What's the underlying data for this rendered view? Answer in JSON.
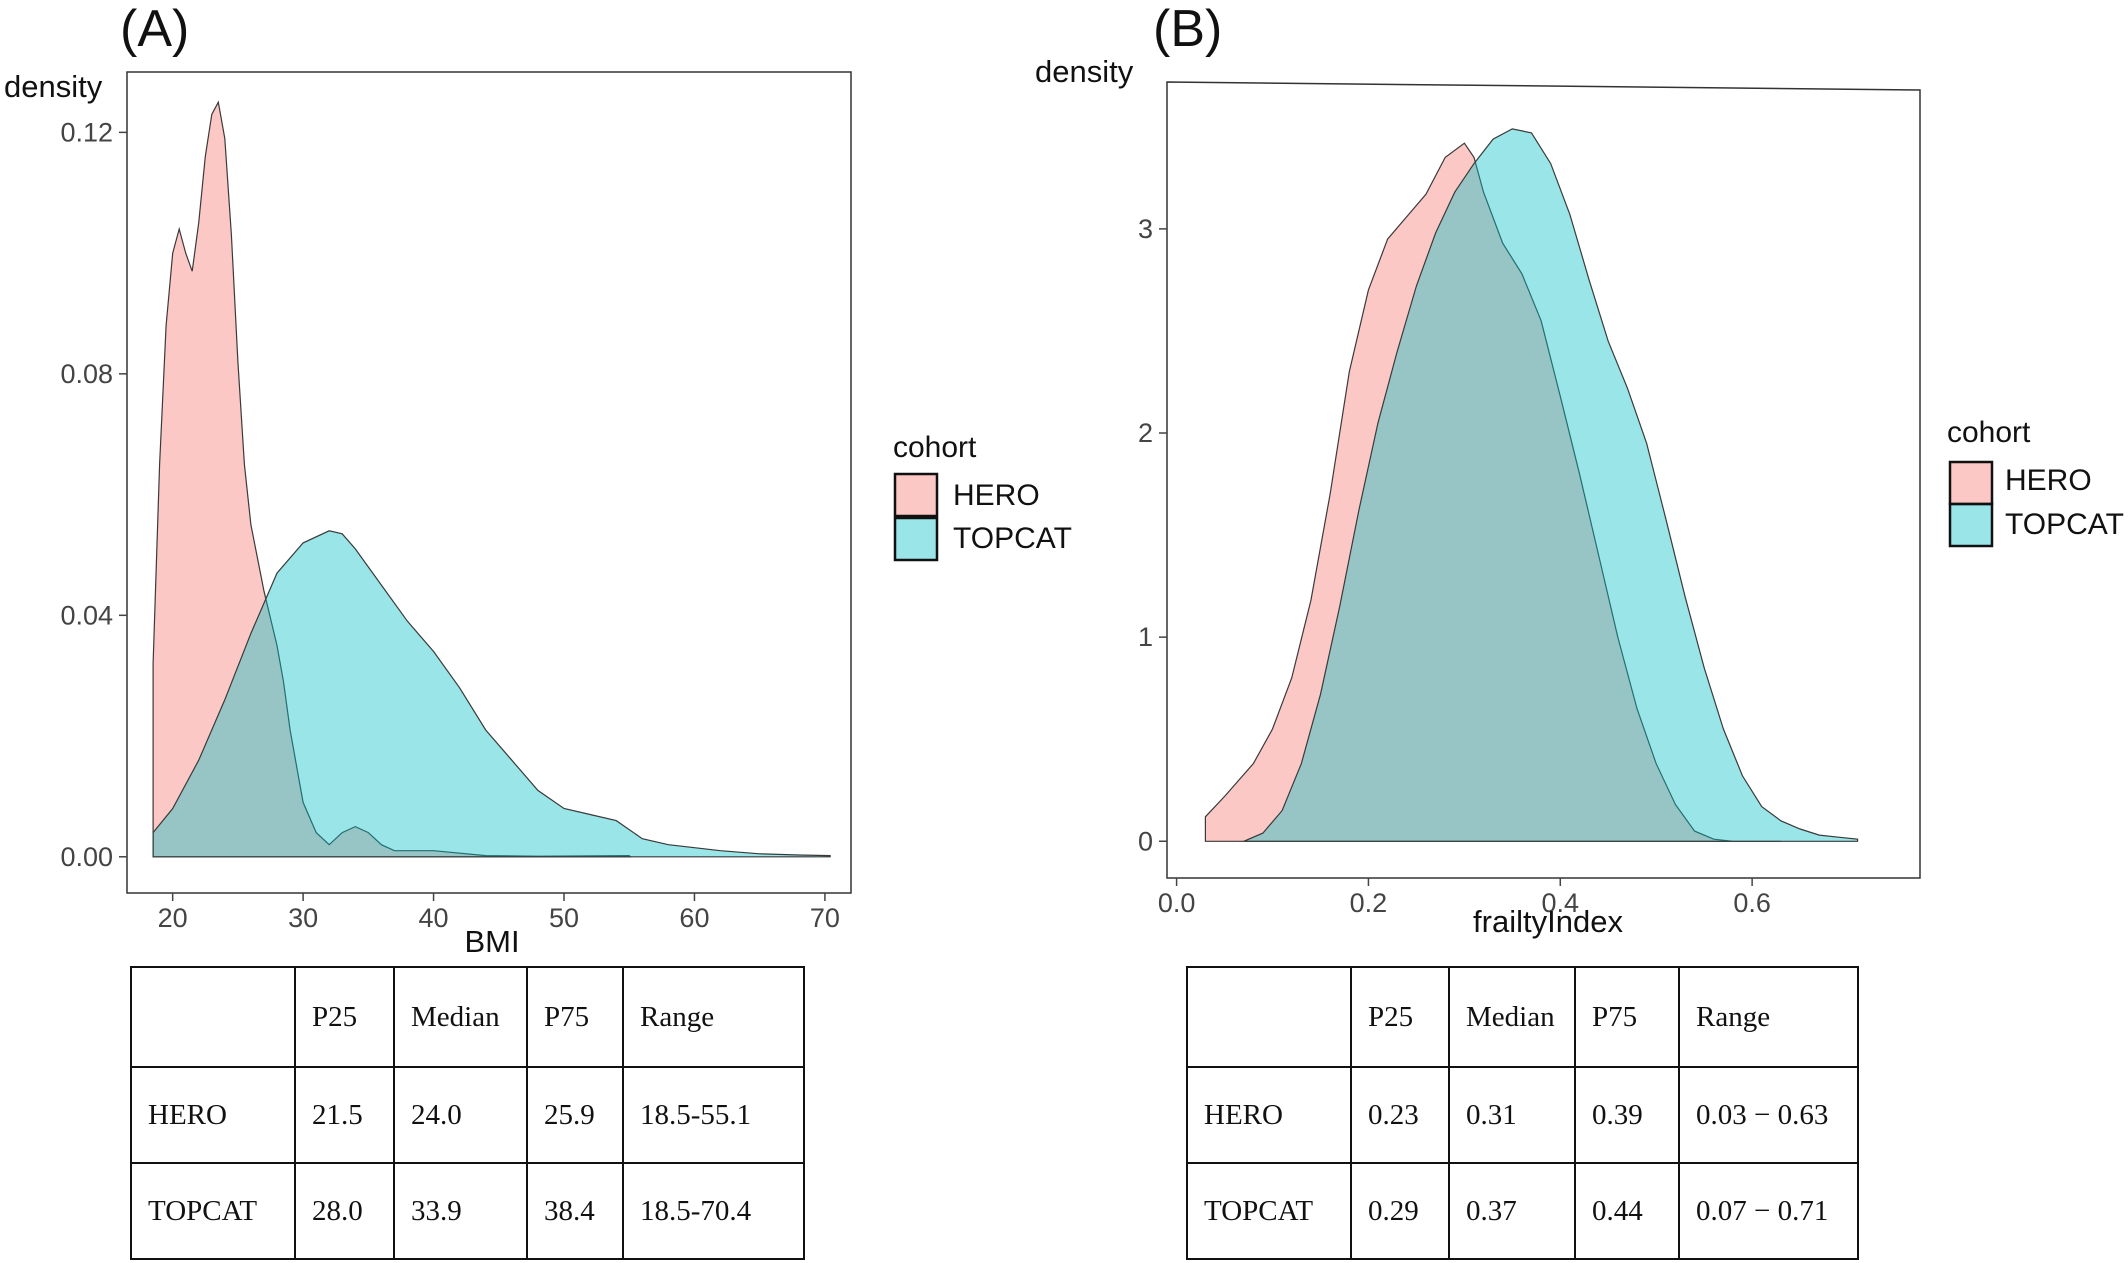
{
  "panels": [
    {
      "label": "(A)",
      "xlabel": "BMI",
      "ylabel": "density",
      "legend_title": "cohort",
      "legend_items": [
        "HERO",
        "TOPCAT"
      ],
      "x_ticks": [
        "20",
        "30",
        "40",
        "50",
        "60",
        "70"
      ],
      "y_ticks": [
        "0.00",
        "0.04",
        "0.08",
        "0.12"
      ],
      "table": {
        "header": [
          "",
          "P25",
          "Median",
          "P75",
          "Range"
        ],
        "rows": [
          [
            "HERO",
            "21.5",
            "24.0",
            "25.9",
            "18.5-55.1"
          ],
          [
            "TOPCAT",
            "28.0",
            "33.9",
            "38.4",
            "18.5-70.4"
          ]
        ]
      }
    },
    {
      "label": "(B)",
      "xlabel": "frailtyIndex",
      "ylabel": "density",
      "legend_title": "cohort",
      "legend_items": [
        "HERO",
        "TOPCAT"
      ],
      "x_ticks": [
        "0.0",
        "0.2",
        "0.4",
        "0.6"
      ],
      "y_ticks": [
        "0",
        "1",
        "2",
        "3"
      ],
      "table": {
        "header": [
          "",
          "P25",
          "Median",
          "P75",
          "Range"
        ],
        "rows": [
          [
            "HERO",
            "0.23",
            "0.31",
            "0.39",
            "0.03 − 0.63"
          ],
          [
            "TOPCAT",
            "0.29",
            "0.37",
            "0.44",
            "0.07 − 0.71"
          ]
        ]
      }
    }
  ],
  "colors": {
    "HERO": "#F8766D",
    "TOPCAT": "#00BFC4",
    "overlap": "#96BFBE"
  },
  "chart_data": [
    {
      "type": "area",
      "title": "(A)",
      "xlabel": "BMI",
      "ylabel": "density",
      "xlim": [
        16.5,
        72
      ],
      "ylim": [
        -0.006,
        0.13
      ],
      "x_ticks": [
        20,
        30,
        40,
        50,
        60,
        70
      ],
      "y_ticks": [
        0.0,
        0.04,
        0.08,
        0.12
      ],
      "legend": "right",
      "grid": false,
      "series": [
        {
          "name": "HERO",
          "points": [
            [
              18.5,
              0.032
            ],
            [
              19,
              0.065
            ],
            [
              19.5,
              0.088
            ],
            [
              20,
              0.1
            ],
            [
              20.5,
              0.104
            ],
            [
              21,
              0.1
            ],
            [
              21.5,
              0.097
            ],
            [
              22,
              0.105
            ],
            [
              22.5,
              0.116
            ],
            [
              23,
              0.123
            ],
            [
              23.5,
              0.125
            ],
            [
              24,
              0.119
            ],
            [
              24.5,
              0.103
            ],
            [
              25,
              0.082
            ],
            [
              25.5,
              0.065
            ],
            [
              26,
              0.055
            ],
            [
              27,
              0.044
            ],
            [
              28,
              0.035
            ],
            [
              28.5,
              0.029
            ],
            [
              29,
              0.021
            ],
            [
              30,
              0.009
            ],
            [
              31,
              0.004
            ],
            [
              32,
              0.002
            ],
            [
              33,
              0.004
            ],
            [
              34,
              0.005
            ],
            [
              35,
              0.004
            ],
            [
              36,
              0.002
            ],
            [
              37,
              0.001
            ],
            [
              40,
              0.001
            ],
            [
              44,
              0.0002
            ],
            [
              48,
              0.0001
            ],
            [
              55,
              0.0002
            ],
            [
              55.1,
              0.0
            ]
          ]
        },
        {
          "name": "TOPCAT",
          "points": [
            [
              18.5,
              0.004
            ],
            [
              20,
              0.008
            ],
            [
              22,
              0.016
            ],
            [
              24,
              0.026
            ],
            [
              26,
              0.037
            ],
            [
              28,
              0.047
            ],
            [
              30,
              0.052
            ],
            [
              32,
              0.054
            ],
            [
              33,
              0.0535
            ],
            [
              34,
              0.051
            ],
            [
              36,
              0.045
            ],
            [
              38,
              0.039
            ],
            [
              40,
              0.034
            ],
            [
              42,
              0.028
            ],
            [
              44,
              0.021
            ],
            [
              46,
              0.016
            ],
            [
              48,
              0.011
            ],
            [
              50,
              0.008
            ],
            [
              52,
              0.007
            ],
            [
              54,
              0.006
            ],
            [
              56,
              0.003
            ],
            [
              58,
              0.002
            ],
            [
              60,
              0.0015
            ],
            [
              62,
              0.001
            ],
            [
              65,
              0.0005
            ],
            [
              68,
              0.0003
            ],
            [
              70.4,
              0.0002
            ]
          ]
        }
      ]
    },
    {
      "type": "area",
      "title": "(B)",
      "xlabel": "frailtyIndex",
      "ylabel": "density",
      "xlim": [
        -0.01,
        0.775
      ],
      "ylim": [
        -0.18,
        3.7
      ],
      "x_ticks": [
        0.0,
        0.2,
        0.4,
        0.6
      ],
      "y_ticks": [
        0,
        1,
        2,
        3
      ],
      "legend": "right",
      "grid": false,
      "series": [
        {
          "name": "HERO",
          "points": [
            [
              0.03,
              0.12
            ],
            [
              0.05,
              0.22
            ],
            [
              0.08,
              0.38
            ],
            [
              0.1,
              0.55
            ],
            [
              0.12,
              0.8
            ],
            [
              0.14,
              1.18
            ],
            [
              0.16,
              1.7
            ],
            [
              0.18,
              2.3
            ],
            [
              0.2,
              2.7
            ],
            [
              0.22,
              2.95
            ],
            [
              0.24,
              3.06
            ],
            [
              0.26,
              3.17
            ],
            [
              0.28,
              3.35
            ],
            [
              0.3,
              3.42
            ],
            [
              0.31,
              3.35
            ],
            [
              0.32,
              3.18
            ],
            [
              0.34,
              2.93
            ],
            [
              0.36,
              2.78
            ],
            [
              0.38,
              2.55
            ],
            [
              0.4,
              2.18
            ],
            [
              0.42,
              1.8
            ],
            [
              0.44,
              1.4
            ],
            [
              0.46,
              1.0
            ],
            [
              0.48,
              0.65
            ],
            [
              0.5,
              0.38
            ],
            [
              0.52,
              0.18
            ],
            [
              0.54,
              0.05
            ],
            [
              0.56,
              0.01
            ],
            [
              0.58,
              0.0
            ],
            [
              0.63,
              0.0
            ]
          ]
        },
        {
          "name": "TOPCAT",
          "points": [
            [
              0.07,
              0.0
            ],
            [
              0.09,
              0.04
            ],
            [
              0.11,
              0.15
            ],
            [
              0.13,
              0.38
            ],
            [
              0.15,
              0.72
            ],
            [
              0.17,
              1.15
            ],
            [
              0.19,
              1.62
            ],
            [
              0.21,
              2.05
            ],
            [
              0.23,
              2.4
            ],
            [
              0.25,
              2.72
            ],
            [
              0.27,
              2.98
            ],
            [
              0.29,
              3.18
            ],
            [
              0.31,
              3.32
            ],
            [
              0.33,
              3.44
            ],
            [
              0.35,
              3.49
            ],
            [
              0.37,
              3.47
            ],
            [
              0.39,
              3.32
            ],
            [
              0.41,
              3.07
            ],
            [
              0.43,
              2.75
            ],
            [
              0.45,
              2.45
            ],
            [
              0.47,
              2.22
            ],
            [
              0.49,
              1.95
            ],
            [
              0.51,
              1.58
            ],
            [
              0.53,
              1.2
            ],
            [
              0.55,
              0.85
            ],
            [
              0.57,
              0.55
            ],
            [
              0.59,
              0.32
            ],
            [
              0.61,
              0.17
            ],
            [
              0.63,
              0.1
            ],
            [
              0.65,
              0.06
            ],
            [
              0.67,
              0.03
            ],
            [
              0.69,
              0.02
            ],
            [
              0.71,
              0.01
            ]
          ]
        }
      ]
    }
  ]
}
